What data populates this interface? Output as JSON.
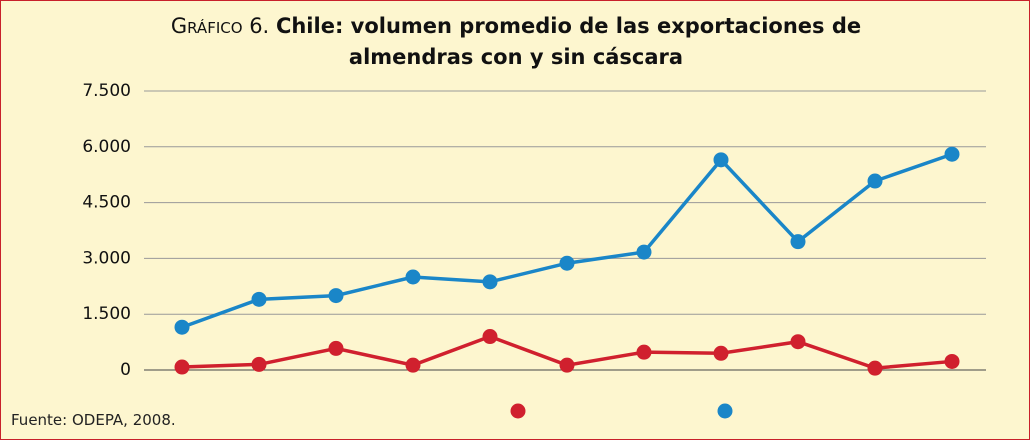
{
  "chart_data": {
    "type": "line",
    "prefix": "Gráfico 6.",
    "title": "Chile: volumen promedio de las exportaciones de almendras con y sin cáscara",
    "source": "Fuente: ODEPA, 2008.",
    "categories": [
      null,
      null,
      null,
      null,
      null,
      null,
      null,
      null,
      null,
      null,
      null
    ],
    "series": [
      {
        "color": "#d0202e",
        "values": [
          80,
          150,
          580,
          130,
          900,
          130,
          480,
          450,
          760,
          50,
          230
        ]
      },
      {
        "color": "#1a86c8",
        "values": [
          1150,
          1900,
          2000,
          2500,
          2370,
          2870,
          3170,
          5650,
          3450,
          5080,
          5800
        ]
      }
    ],
    "ylim": [
      0,
      7500
    ],
    "yticks": [
      {
        "value": 0,
        "label": "0"
      },
      {
        "value": 1500,
        "label": "1.500"
      },
      {
        "value": 3000,
        "label": "3.000"
      },
      {
        "value": 4500,
        "label": "4.500"
      },
      {
        "value": 6000,
        "label": "6.000"
      },
      {
        "value": 7500,
        "label": "7.500"
      }
    ],
    "grid": true
  }
}
